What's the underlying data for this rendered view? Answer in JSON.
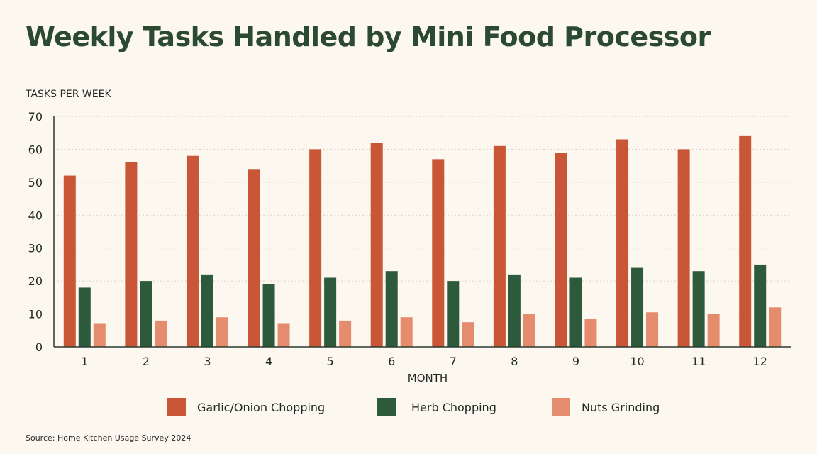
{
  "title": "Weekly Tasks Handled by Mini Food Processor",
  "source": "Source: Home Kitchen Usage Survey 2024",
  "chart_data": {
    "type": "bar",
    "title": "Weekly Tasks Handled by Mini Food Processor",
    "xlabel": "MONTH",
    "ylabel": "TASKS PER WEEK",
    "ylim": [
      0,
      70
    ],
    "yticks": [
      0,
      10,
      20,
      30,
      40,
      50,
      60,
      70
    ],
    "grid": true,
    "legend_position": "bottom",
    "categories": [
      "1",
      "2",
      "3",
      "4",
      "5",
      "6",
      "7",
      "8",
      "9",
      "10",
      "11",
      "12"
    ],
    "series": [
      {
        "name": "Garlic/Onion Chopping",
        "color": "#c95636",
        "values": [
          52,
          56,
          58,
          54,
          60,
          62,
          57,
          61,
          59,
          63,
          60,
          64
        ]
      },
      {
        "name": "Herb Chopping",
        "color": "#2c5a3b",
        "values": [
          18,
          20,
          22,
          19,
          21,
          23,
          20,
          22,
          21,
          24,
          23,
          25
        ]
      },
      {
        "name": "Nuts Grinding",
        "color": "#e58b6e",
        "values": [
          7,
          8,
          9,
          7,
          8,
          9,
          7.5,
          10,
          8.5,
          10.5,
          10,
          12
        ]
      }
    ]
  }
}
